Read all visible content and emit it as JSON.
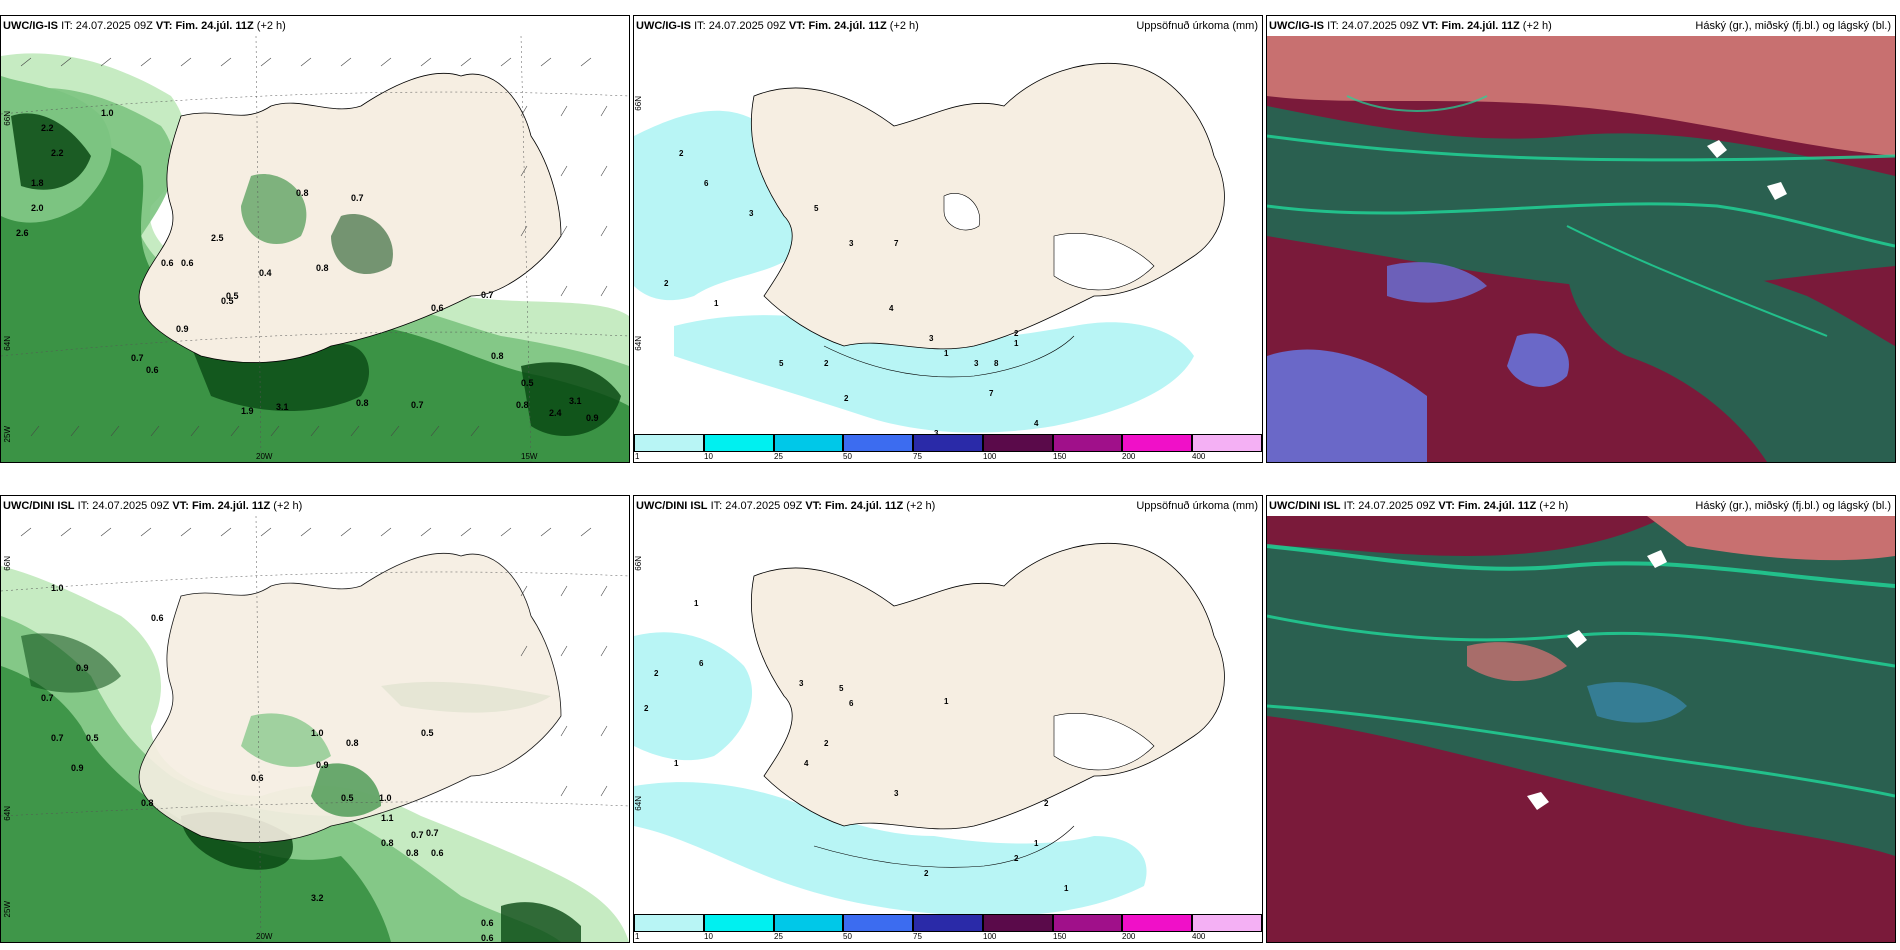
{
  "panels": [
    {
      "model": "UWC/IG-IS",
      "it_label": "IT:",
      "it": "24.07.2025 09Z",
      "vt_label": "VT:",
      "vt": "Fim. 24.júl. 11Z",
      "lead": "(+2 h)",
      "right_title": "",
      "axis_labels": [
        "66N",
        "64N",
        "25W",
        "20W",
        "15W"
      ]
    },
    {
      "model": "UWC/IG-IS",
      "it_label": "IT:",
      "it": "24.07.2025 09Z",
      "vt_label": "VT:",
      "vt": "Fim. 24.júl. 11Z",
      "lead": "(+2 h)",
      "right_title": "Uppsöfnuð úrkoma (mm)",
      "axis_labels": [
        "66N",
        "64N"
      ]
    },
    {
      "model": "UWC/IG-IS",
      "it_label": "IT:",
      "it": "24.07.2025 09Z",
      "vt_label": "VT:",
      "vt": "Fim. 24.júl. 11Z",
      "lead": "(+2 h)",
      "right_title": "Háský (gr.), miðský (fj.bl.) og lágský (bl.)",
      "axis_labels": []
    },
    {
      "model": "UWC/DINI ISL",
      "it_label": "IT:",
      "it": "24.07.2025 09Z",
      "vt_label": "VT:",
      "vt": "Fim. 24.júl. 11Z",
      "lead": "(+2 h)",
      "right_title": "",
      "axis_labels": [
        "66N",
        "64N",
        "25W",
        "20W"
      ]
    },
    {
      "model": "UWC/DINI ISL",
      "it_label": "IT:",
      "it": "24.07.2025 09Z",
      "vt_label": "VT:",
      "vt": "Fim. 24.júl. 11Z",
      "lead": "(+2 h)",
      "right_title": "Uppsöfnuð úrkoma (mm)",
      "axis_labels": [
        "66N",
        "64N"
      ]
    },
    {
      "model": "UWC/DINI ISL",
      "it_label": "IT:",
      "it": "24.07.2025 09Z",
      "vt_label": "VT:",
      "vt": "Fim. 24.júl. 11Z",
      "lead": "(+2 h)",
      "right_title": "Háský (gr.), miðský (fj.bl.) og lágský (bl.)",
      "axis_labels": []
    }
  ],
  "colorbar": {
    "ticks": [
      "1",
      "10",
      "25",
      "50",
      "75",
      "100",
      "150",
      "200",
      "400"
    ],
    "colors": [
      "#b8f5f5",
      "#00f0f0",
      "#00c8e8",
      "#3c6cf0",
      "#2a2aa8",
      "#5a0a4a",
      "#a0108a",
      "#f010c8",
      "#f4b0f4"
    ]
  },
  "precip_labels_top": [
    "2.2",
    "2.2",
    "1.8",
    "1.0",
    "2.6",
    "2.5",
    "2.0",
    "0.6",
    "0.5",
    "0.6",
    "0.8",
    "0.7",
    "0.8",
    "0.9",
    "0.8",
    "0.7",
    "0.6",
    "0.5",
    "0.8",
    "0.7",
    "0.8",
    "1.9",
    "3.1",
    "2.4",
    "3.1",
    "0.9",
    "0.4",
    "0.5",
    "0.6",
    "0.7"
  ],
  "precip_labels_bottom": [
    "1.0",
    "0.6",
    "0.9",
    "0.7",
    "0.5",
    "0.7",
    "0.9",
    "0.8",
    "0.6",
    "0.5",
    "1.0",
    "0.8",
    "0.9",
    "0.5",
    "0.8",
    "0.7",
    "0.6",
    "1.0",
    "0.8",
    "3.2",
    "0.6",
    "0.6",
    "0.7",
    "1.1"
  ],
  "accum_labels_top": [
    "2",
    "3",
    "5",
    "6",
    "3",
    "2",
    "1",
    "7",
    "4",
    "3",
    "1",
    "2",
    "5",
    "3",
    "8",
    "2",
    "4",
    "7",
    "3",
    "1",
    "2"
  ],
  "accum_labels_bottom": [
    "2",
    "1",
    "6",
    "2",
    "3",
    "5",
    "6",
    "1",
    "4",
    "3",
    "2",
    "1",
    "2",
    "2",
    "1",
    "2",
    "1"
  ],
  "colors": {
    "land": "#f6eee2",
    "green_light": "#c6ebc2",
    "green_mid": "#7cc481",
    "green_dark": "#2e8a3a",
    "green_darkest": "#0a4a14",
    "precip_cyan": "#b8f5f5",
    "cloud_maroon": "#7a1a3a",
    "cloud_green": "#2a6050",
    "cloud_teal": "#20d89a",
    "cloud_salmon": "#c87070",
    "cloud_blue": "#6a68c8"
  }
}
